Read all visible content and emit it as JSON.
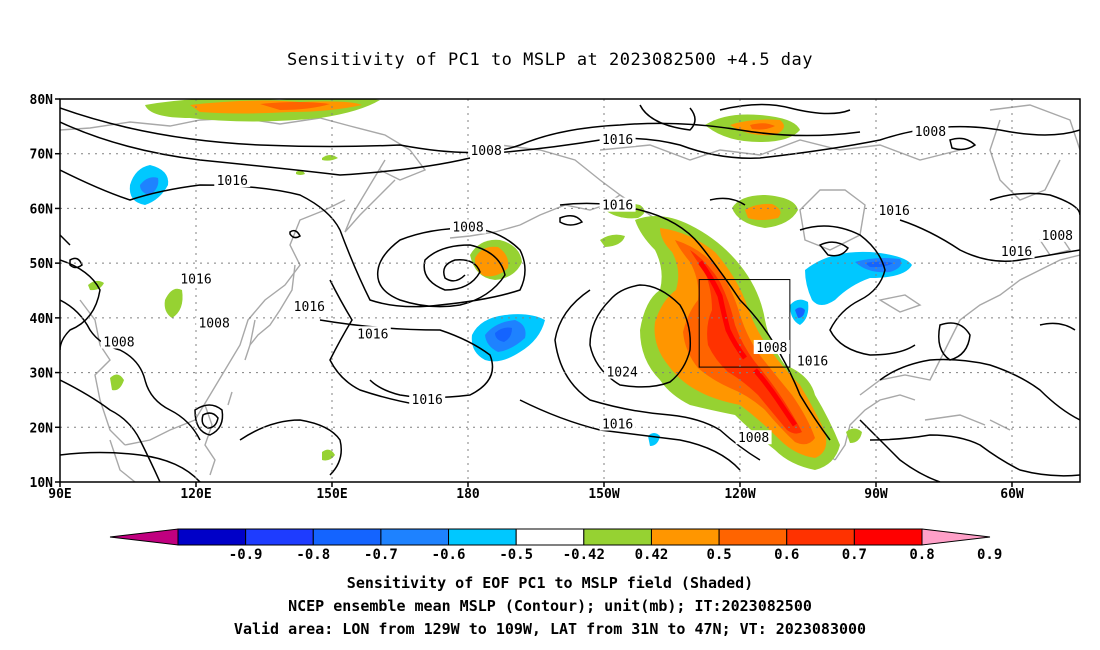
{
  "title": "Sensitivity of PC1 to MSLP at 2023082500 +4.5 day",
  "lat_labels": [
    "80N",
    "70N",
    "60N",
    "50N",
    "40N",
    "30N",
    "20N",
    "10N"
  ],
  "lat_values": [
    80,
    70,
    60,
    50,
    40,
    30,
    20,
    10
  ],
  "lon_labels": [
    "90E",
    "120E",
    "150E",
    "180",
    "150W",
    "120W",
    "90W",
    "60W"
  ],
  "lon_values": [
    90,
    120,
    150,
    180,
    210,
    240,
    270,
    300
  ],
  "map_extent": {
    "lon": [
      90,
      315
    ],
    "lat": [
      10,
      80
    ]
  },
  "contour_labels": [
    {
      "text": "1008",
      "lon": 184,
      "lat": 70.5
    },
    {
      "text": "1016",
      "lon": 213,
      "lat": 72.5
    },
    {
      "text": "1008",
      "lon": 282,
      "lat": 74
    },
    {
      "text": "1016",
      "lon": 128,
      "lat": 65
    },
    {
      "text": "1016",
      "lon": 213,
      "lat": 60.5
    },
    {
      "text": "1016",
      "lon": 274,
      "lat": 59.5
    },
    {
      "text": "1008",
      "lon": 180,
      "lat": 56.5
    },
    {
      "text": "1008",
      "lon": 310,
      "lat": 55
    },
    {
      "text": "1016",
      "lon": 301,
      "lat": 52
    },
    {
      "text": "1016",
      "lon": 120,
      "lat": 47
    },
    {
      "text": "1016",
      "lon": 145,
      "lat": 42
    },
    {
      "text": "1008",
      "lon": 124,
      "lat": 39
    },
    {
      "text": "1008",
      "lon": 103,
      "lat": 35.5
    },
    {
      "text": "1016",
      "lon": 159,
      "lat": 37
    },
    {
      "text": "1008",
      "lon": 247,
      "lat": 34.5
    },
    {
      "text": "1016",
      "lon": 256,
      "lat": 32
    },
    {
      "text": "1024",
      "lon": 214,
      "lat": 30
    },
    {
      "text": "1016",
      "lon": 171,
      "lat": 25
    },
    {
      "text": "1016",
      "lon": 213,
      "lat": 20.5
    },
    {
      "text": "1008",
      "lon": 243,
      "lat": 18
    }
  ],
  "valid_area": {
    "lon": [
      231,
      251
    ],
    "lat": [
      31,
      47
    ]
  },
  "colorbar": {
    "colors": [
      "#c0007f",
      "#0000c8",
      "#1e3cff",
      "#1464ff",
      "#1e82ff",
      "#00c8ff",
      "#ffffff",
      "#96d232",
      "#ff9600",
      "#ff6400",
      "#ff3200",
      "#ff0000",
      "#ffa0c8"
    ],
    "labels": [
      "-0.9",
      "-0.8",
      "-0.7",
      "-0.6",
      "-0.5",
      "-0.42",
      "0.42",
      "0.5",
      "0.6",
      "0.7",
      "0.8",
      "0.9"
    ]
  },
  "footer": {
    "line1": "Sensitivity of EOF PC1 to MSLP field (Shaded)",
    "line2": "NCEP ensemble mean MSLP (Contour); unit(mb); IT:2023082500",
    "line3": "Valid area: LON from 129W to 109W, LAT from 31N to 47N; VT: 2023083000"
  }
}
